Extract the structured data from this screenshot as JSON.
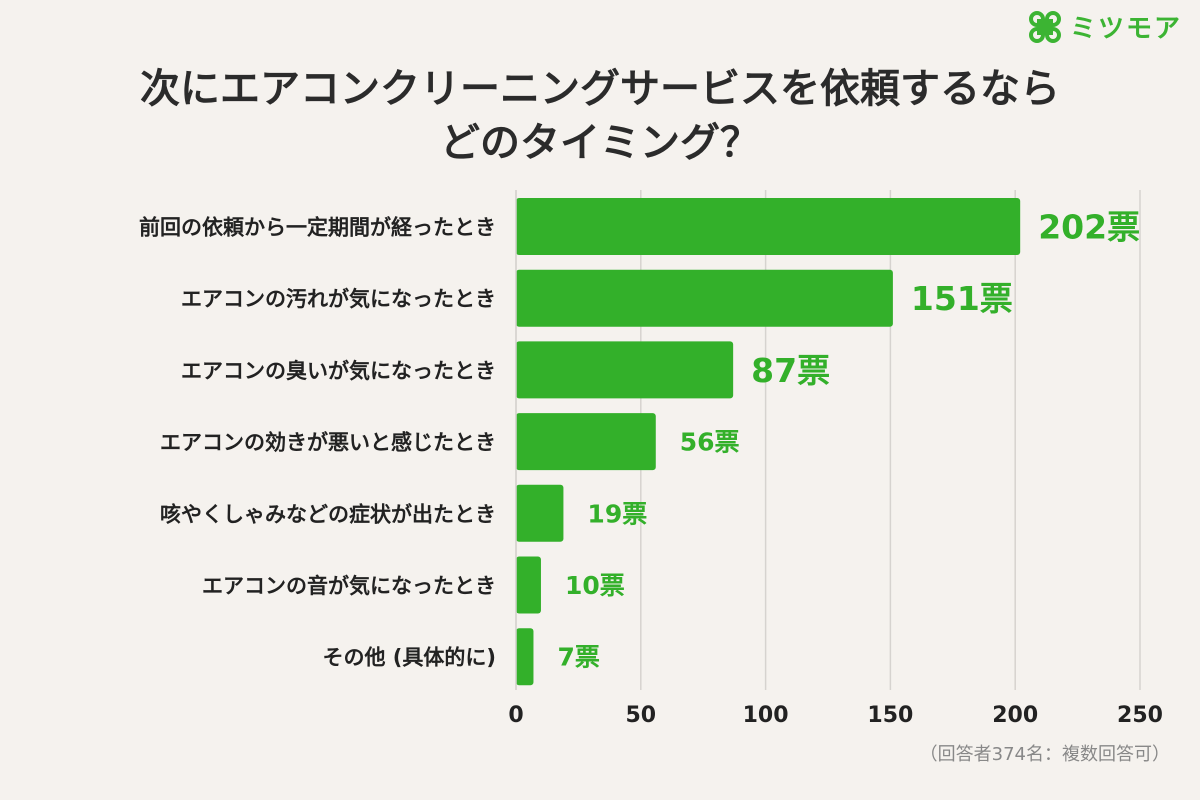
{
  "brand": {
    "name": "ミツモア",
    "color": "#3cb433"
  },
  "title_line1": "次にエアコンクリーニングサービスを依頼するなら",
  "title_line2": "どのタイミング？",
  "note": "（回答者374名：複数回答可）",
  "colors": {
    "bar": "#33b02a",
    "value_text": "#33b02a",
    "grid": "#d6d3cf"
  },
  "chart_data": {
    "type": "bar",
    "orientation": "horizontal",
    "title": "次にエアコンクリーニングサービスを依頼するならどのタイミング？",
    "categories": [
      "前回の依頼から一定期間が経ったとき",
      "エアコンの汚れが気になったとき",
      "エアコンの臭いが気になったとき",
      "エアコンの効きが悪いと感じたとき",
      "咳やくしゃみなどの症状が出たとき",
      "エアコンの音が気になったとき",
      "その他 (具体的に)"
    ],
    "values": [
      202,
      151,
      87,
      56,
      19,
      10,
      7
    ],
    "value_labels": [
      "202票",
      "151票",
      "87票",
      "56票",
      "19票",
      "10票",
      "7票"
    ],
    "xlim": [
      0,
      250
    ],
    "xticks": [
      "0",
      "50",
      "100",
      "150",
      "200",
      "250"
    ],
    "grid": true
  }
}
